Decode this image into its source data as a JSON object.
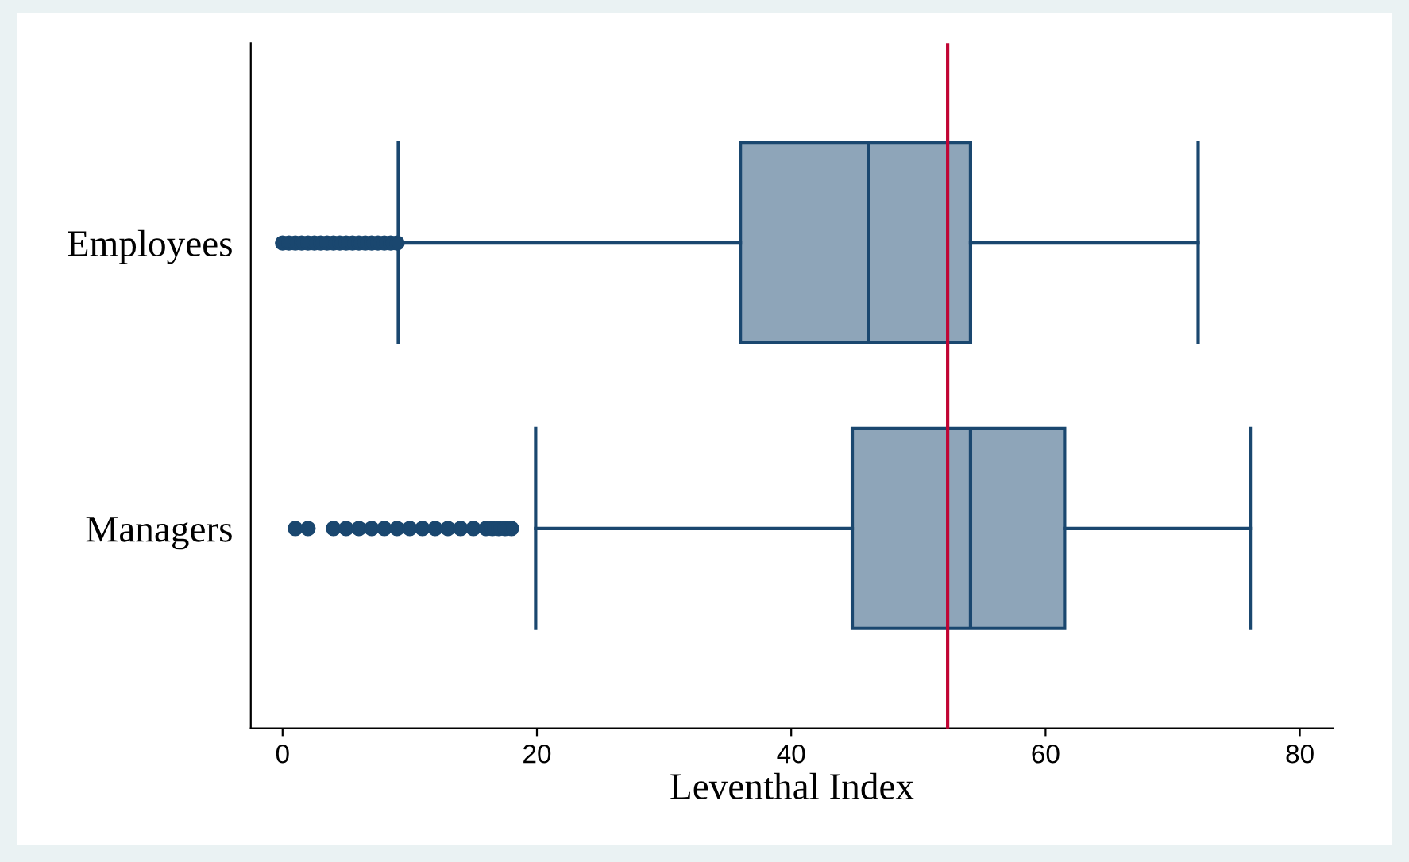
{
  "chart_data": {
    "type": "box",
    "orientation": "horizontal",
    "xlabel": "Leventhal Index",
    "categories": [
      "Employees",
      "Managers"
    ],
    "boxes": [
      {
        "low": 9.1,
        "q1": 36,
        "median": 46.1,
        "q3": 54.1,
        "high": 72,
        "outliers": [
          0,
          0.5,
          1,
          1.5,
          2,
          2.5,
          3,
          3.5,
          4,
          4.5,
          5,
          5.5,
          6,
          6.5,
          7,
          7.5,
          8,
          8.5,
          9
        ]
      },
      {
        "low": 19.9,
        "q1": 44.8,
        "median": 54.1,
        "q3": 61.5,
        "high": 76.1,
        "outliers": [
          1,
          2,
          4,
          5,
          6,
          7,
          8,
          9,
          10,
          11,
          12,
          13,
          14,
          15,
          16,
          16.5,
          17,
          17.5,
          18
        ]
      }
    ],
    "color": "#8ea5b9",
    "xlim": [
      -2.5,
      82.6
    ],
    "xticks": [
      0,
      20,
      40,
      60,
      80
    ],
    "ref_lines": [
      {
        "axis": "x",
        "value": 52.3,
        "color": "#c10534"
      }
    ]
  }
}
